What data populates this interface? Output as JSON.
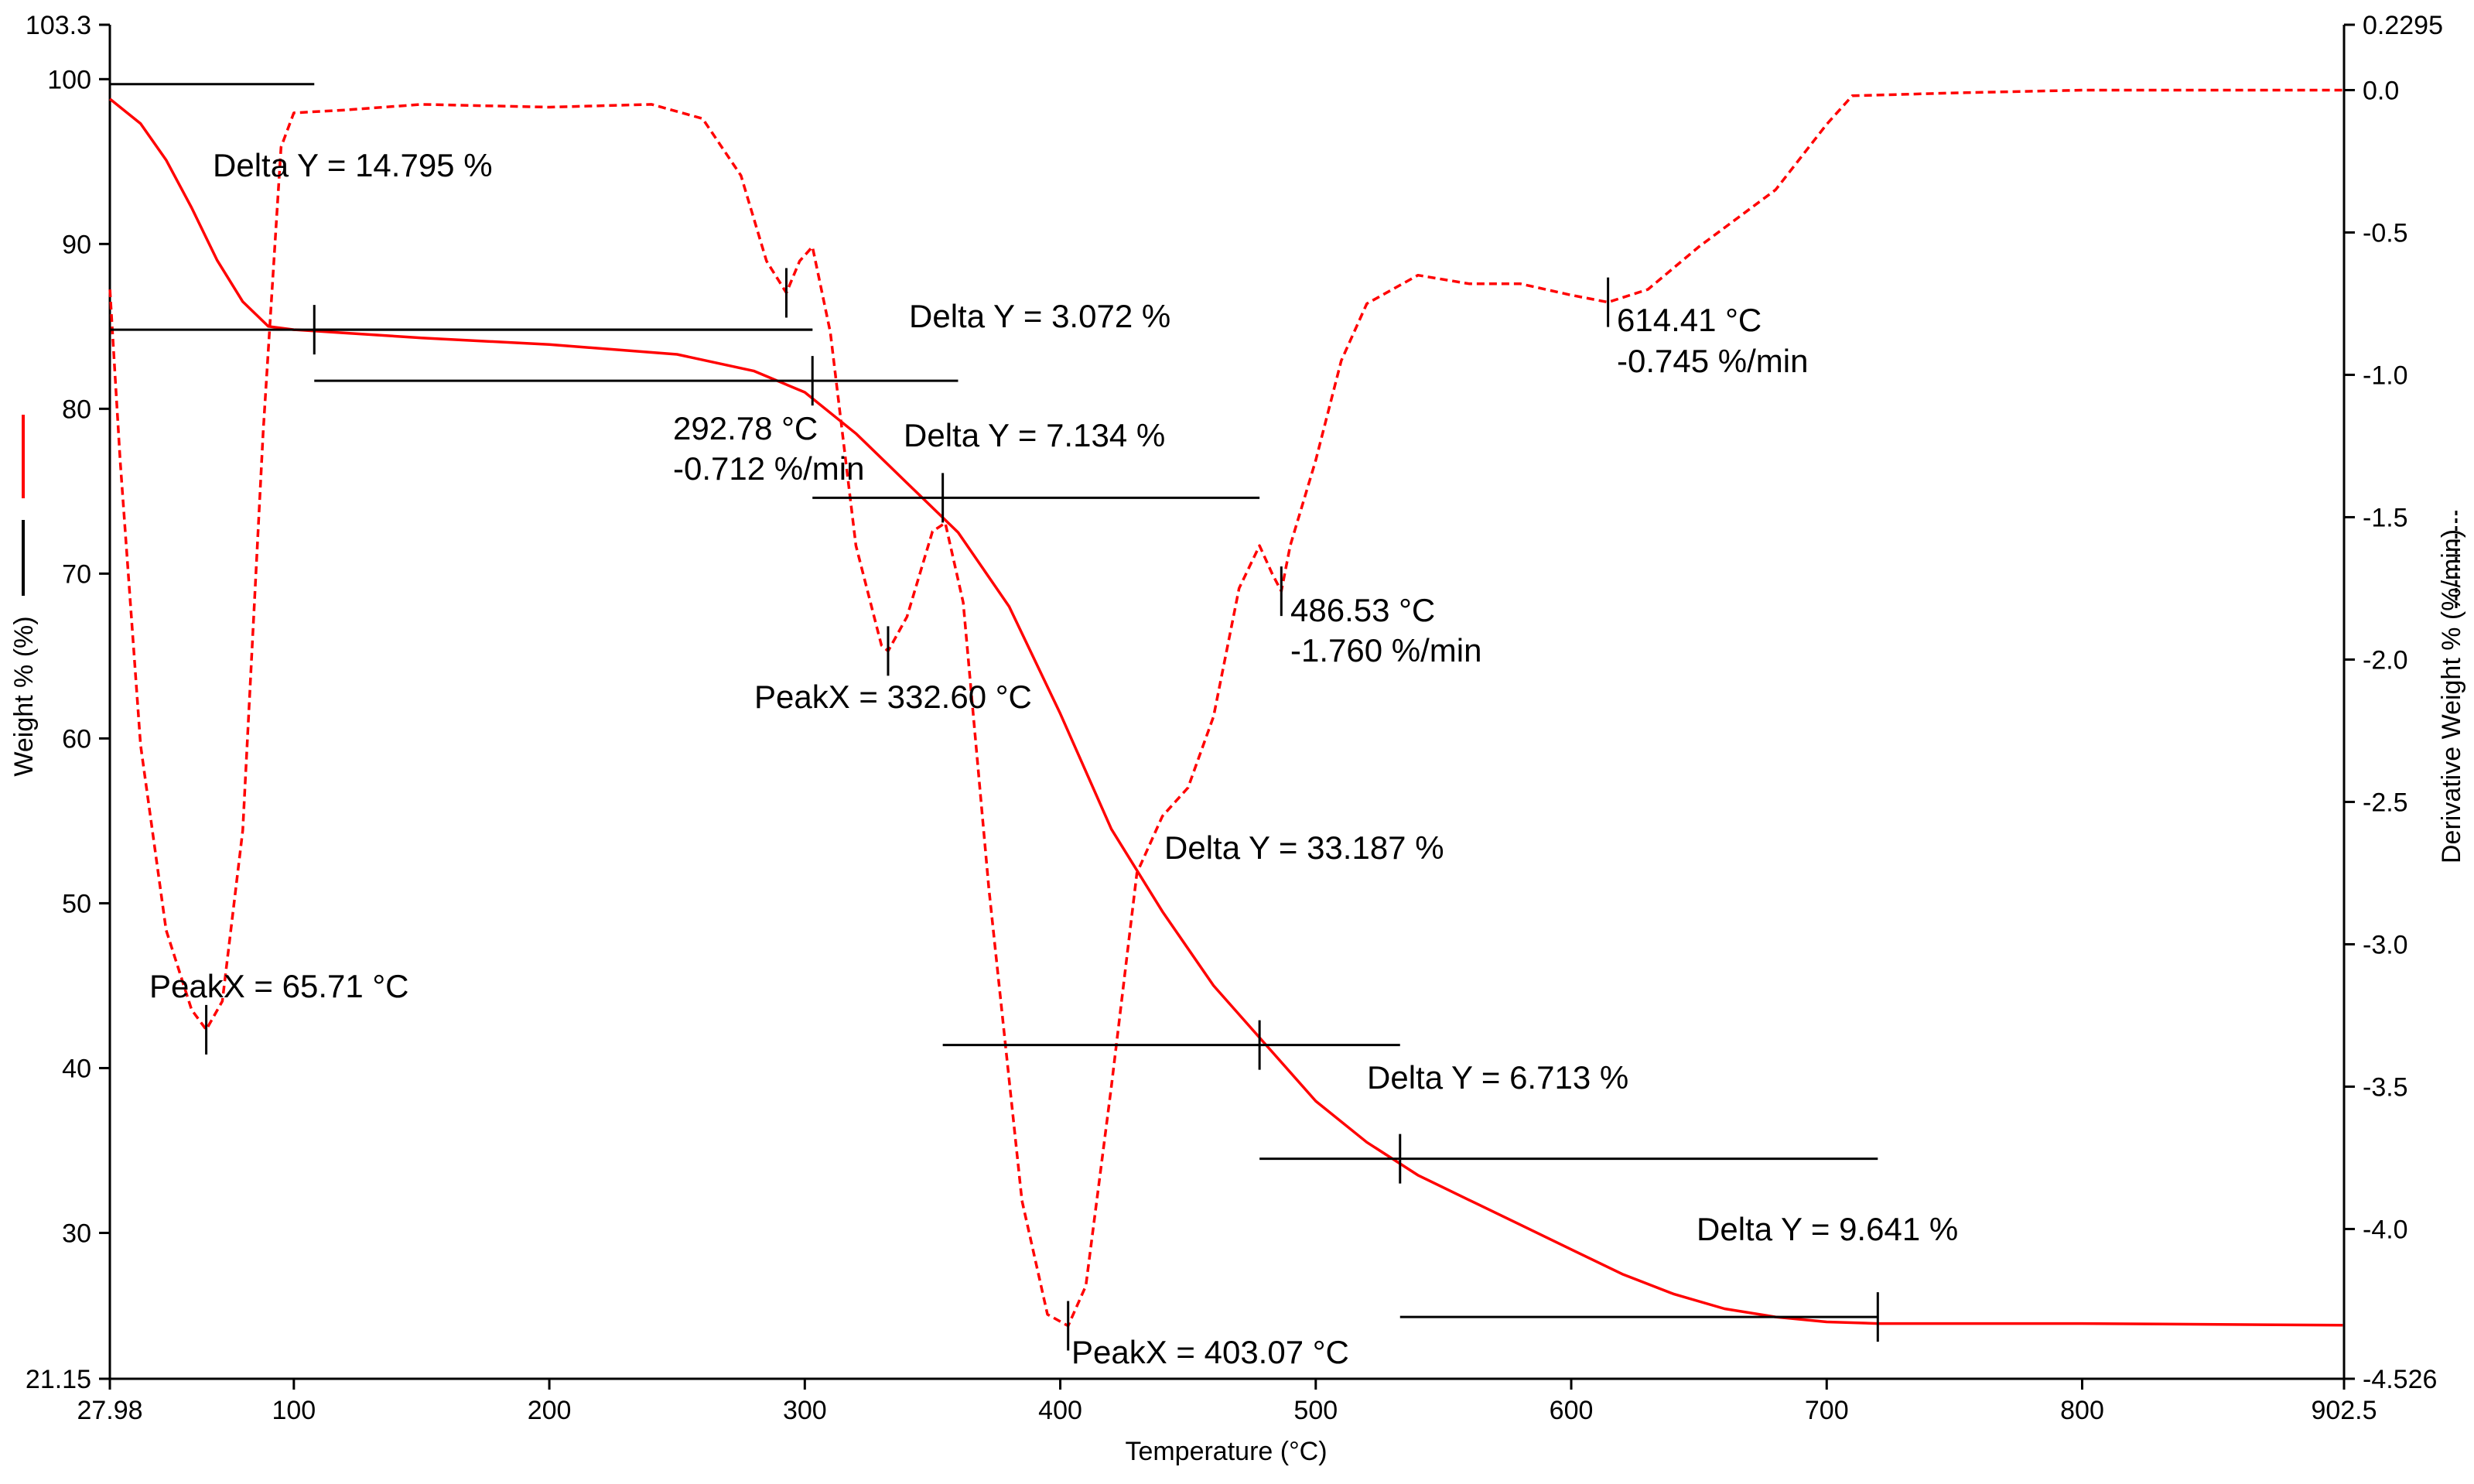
{
  "chart_data": {
    "type": "line",
    "xlabel": "Temperature (°C)",
    "ylabel_left": "Weight % (%)",
    "ylabel_right": "Derivative Weight % (%/min)",
    "xlim": [
      27.98,
      902.5
    ],
    "ylim_left": [
      21.15,
      103.3
    ],
    "ylim_right": [
      -4.526,
      0.2295
    ],
    "x_ticks": [
      27.98,
      100,
      200,
      300,
      400,
      500,
      600,
      700,
      800,
      902.5
    ],
    "x_tick_labels": [
      "27.98",
      "100",
      "200",
      "300",
      "400",
      "500",
      "600",
      "700",
      "800",
      "902.5"
    ],
    "y_left_ticks": [
      21.15,
      30,
      40,
      50,
      60,
      70,
      80,
      90,
      100,
      103.3
    ],
    "y_left_tick_labels": [
      "21.15",
      "30",
      "40",
      "50",
      "60",
      "70",
      "80",
      "90",
      "100",
      "103.3"
    ],
    "y_right_ticks": [
      -4.526,
      -4.0,
      -3.5,
      -3.0,
      -2.5,
      -2.0,
      -1.5,
      -1.0,
      -0.5,
      0.0,
      0.2295
    ],
    "y_right_tick_labels": [
      "-4.526",
      "-4.0",
      "-3.5",
      "-3.0",
      "-2.5",
      "-2.0",
      "-1.5",
      "-1.0",
      "-0.5",
      "0.0",
      "0.2295"
    ],
    "colors": {
      "weight": "#ff0000",
      "derivative": "#ff0000",
      "annotation": "#000000"
    },
    "series": [
      {
        "axis": "left",
        "style": "solid",
        "x": [
          28,
          40,
          50,
          60,
          70,
          80,
          90,
          100,
          120,
          150,
          200,
          250,
          280,
          300,
          320,
          340,
          360,
          380,
          400,
          420,
          440,
          460,
          480,
          500,
          520,
          540,
          560,
          580,
          600,
          620,
          640,
          660,
          680,
          700,
          720,
          800,
          902
        ],
        "y": [
          98.8,
          97.3,
          95.1,
          92.2,
          89.0,
          86.5,
          85.0,
          84.8,
          84.6,
          84.3,
          83.9,
          83.3,
          82.3,
          81.0,
          78.5,
          75.5,
          72.5,
          68.0,
          61.5,
          54.5,
          49.5,
          45.0,
          41.5,
          38.0,
          35.5,
          33.5,
          32.0,
          30.5,
          29.0,
          27.5,
          26.3,
          25.4,
          24.9,
          24.6,
          24.5,
          24.5,
          24.4
        ]
      },
      {
        "axis": "right",
        "style": "dashed",
        "x": [
          28,
          32,
          40,
          50,
          60,
          65.7,
          72,
          80,
          88,
          95,
          100,
          120,
          150,
          200,
          240,
          260,
          275,
          285,
          292.78,
          298,
          303,
          310,
          320,
          330,
          332.6,
          340,
          350,
          355,
          362,
          372,
          385,
          395,
          403.07,
          410,
          420,
          430,
          440,
          450,
          460,
          470,
          478,
          483,
          486.53,
          490,
          500,
          510,
          520,
          540,
          560,
          580,
          600,
          614.41,
          630,
          650,
          680,
          700,
          710,
          750,
          800,
          850,
          902
        ],
        "y": [
          -0.7,
          -1.3,
          -2.3,
          -2.95,
          -3.23,
          -3.3,
          -3.2,
          -2.6,
          -1.2,
          -0.2,
          -0.08,
          -0.07,
          -0.05,
          -0.06,
          -0.05,
          -0.1,
          -0.3,
          -0.6,
          -0.712,
          -0.6,
          -0.55,
          -0.85,
          -1.6,
          -1.95,
          -1.97,
          -1.85,
          -1.55,
          -1.52,
          -1.8,
          -2.8,
          -3.9,
          -4.3,
          -4.34,
          -4.2,
          -3.5,
          -2.75,
          -2.55,
          -2.45,
          -2.2,
          -1.75,
          -1.6,
          -1.7,
          -1.76,
          -1.6,
          -1.3,
          -0.95,
          -0.75,
          -0.65,
          -0.68,
          -0.68,
          -0.72,
          -0.745,
          -0.7,
          -0.55,
          -0.35,
          -0.12,
          -0.02,
          -0.01,
          0.0,
          0.0,
          0.0
        ]
      }
    ],
    "annotations": [
      {
        "text": "Delta Y = 14.795 %"
      },
      {
        "text": "Delta Y = 3.072 %"
      },
      {
        "text": "Delta Y = 7.134 %"
      },
      {
        "text": "Delta Y = 33.187 %"
      },
      {
        "text": "Delta Y = 6.713 %"
      },
      {
        "text": "Delta Y = 9.641 %"
      },
      {
        "text": "PeakX = 65.71 °C"
      },
      {
        "text": "PeakX = 332.60 °C"
      },
      {
        "text": "PeakX = 403.07 °C"
      },
      {
        "text": "292.78 °C"
      },
      {
        "text": "-0.712 %/min"
      },
      {
        "text": "486.53 °C"
      },
      {
        "text": "-1.760 %/min"
      },
      {
        "text": "614.41 °C"
      },
      {
        "text": "-0.745 %/min"
      }
    ],
    "markers": [
      {
        "x1": 27.98,
        "x2": 108,
        "y": 99.7
      },
      {
        "x1": 27.98,
        "x2": 303,
        "y": 84.8
      },
      {
        "x1": 108,
        "x2": 303,
        "y": 84.8,
        "tick": 108
      },
      {
        "x1": 108,
        "x2": 360,
        "y": 81.7,
        "tick": 303
      },
      {
        "x1": 303,
        "x2": 478,
        "y": 74.6,
        "tick": 354
      },
      {
        "x1": 354,
        "x2": 533,
        "y": 41.4,
        "tick": 478
      },
      {
        "x1": 478,
        "x2": 720,
        "y": 34.5,
        "tick": 533
      },
      {
        "x1": 533,
        "x2": 720,
        "y": 24.9,
        "tick": 720
      }
    ],
    "peak_marks": [
      {
        "x": 65.71,
        "y": -3.3
      },
      {
        "x": 292.78,
        "y": -0.712
      },
      {
        "x": 332.6,
        "y": -1.97
      },
      {
        "x": 403.07,
        "y": -4.34
      },
      {
        "x": 486.53,
        "y": -1.76
      },
      {
        "x": 614.41,
        "y": -0.745
      }
    ],
    "legend": {
      "weight_swatch": "solid",
      "derivative_swatch": "dashed"
    }
  }
}
